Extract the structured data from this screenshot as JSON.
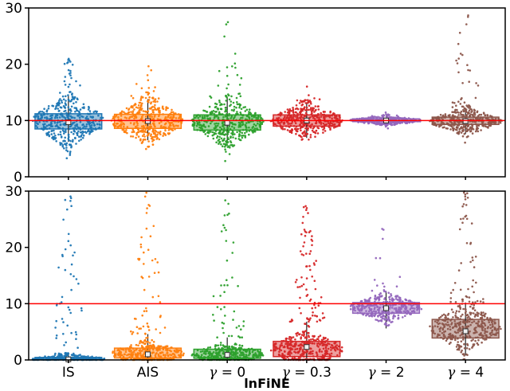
{
  "figure": {
    "xlabel": "lnFiNE",
    "background": "#ffffff",
    "axis_color": "#000000",
    "reference_color": "#ff0000"
  },
  "chart_data": [
    {
      "type": "scatter",
      "position": "top",
      "title": "",
      "xlabel": "",
      "ylabel": "",
      "ylim": [
        0,
        30
      ],
      "yticks": [
        0,
        10,
        20,
        30
      ],
      "grid": false,
      "legend": "none",
      "reference_line_y": 10,
      "show_x_tick_labels": false,
      "categories": [
        "IS",
        "AIS",
        "γ = 0",
        "γ = 0.3",
        "γ = 2",
        "γ = 4"
      ],
      "series": [
        {
          "name": "IS",
          "color": "#1f77b4",
          "median": 9.7,
          "q1": 8.5,
          "q3": 11.2,
          "whisker_low": 6.2,
          "whisker_high": 14.4,
          "cluster_center": 9.9,
          "cluster_sigma": 2.1,
          "cluster_n": 420,
          "tail_min": 14.4,
          "tail_max": 21.0,
          "tail_n": 22
        },
        {
          "name": "AIS",
          "color": "#ff7f0e",
          "median": 9.9,
          "q1": 8.6,
          "q3": 11.1,
          "whisker_low": 6.5,
          "whisker_high": 13.8,
          "cluster_center": 9.9,
          "cluster_sigma": 1.9,
          "cluster_n": 400,
          "tail_min": 13.8,
          "tail_max": 20.0,
          "tail_n": 14
        },
        {
          "name": "γ = 0",
          "color": "#2ca02c",
          "median": 9.6,
          "q1": 8.3,
          "q3": 11.0,
          "whisker_low": 6.0,
          "whisker_high": 14.0,
          "cluster_center": 9.7,
          "cluster_sigma": 2.0,
          "cluster_n": 410,
          "tail_min": 14.0,
          "tail_max": 28.0,
          "tail_n": 22
        },
        {
          "name": "γ = 0.3",
          "color": "#d62728",
          "median": 10.0,
          "q1": 9.0,
          "q3": 11.0,
          "whisker_low": 6.9,
          "whisker_high": 13.2,
          "cluster_center": 10.0,
          "cluster_sigma": 1.5,
          "cluster_n": 380,
          "tail_min": 13.2,
          "tail_max": 16.5,
          "tail_n": 10
        },
        {
          "name": "γ = 2",
          "color": "#9467bd",
          "median": 10.0,
          "q1": 9.8,
          "q3": 10.3,
          "whisker_low": 9.2,
          "whisker_high": 10.8,
          "cluster_center": 10.0,
          "cluster_sigma": 0.4,
          "cluster_n": 340,
          "tail_min": 10.8,
          "tail_max": 11.5,
          "tail_n": 3
        },
        {
          "name": "γ = 4",
          "color": "#8c564b",
          "median": 9.9,
          "q1": 9.3,
          "q3": 10.6,
          "whisker_low": 7.6,
          "whisker_high": 12.2,
          "cluster_center": 9.9,
          "cluster_sigma": 1.1,
          "cluster_n": 360,
          "tail_min": 12.2,
          "tail_max": 29.0,
          "tail_n": 30
        }
      ]
    },
    {
      "type": "scatter",
      "position": "bottom",
      "title": "",
      "xlabel": "lnFiNE",
      "ylabel": "",
      "ylim": [
        0,
        30
      ],
      "yticks": [
        0,
        10,
        20,
        30
      ],
      "grid": false,
      "legend": "none",
      "reference_line_y": 10,
      "show_x_tick_labels": true,
      "categories": [
        "IS",
        "AIS",
        "γ = 0",
        "γ = 0.3",
        "γ = 2",
        "γ = 4"
      ],
      "series": [
        {
          "name": "IS",
          "color": "#1f77b4",
          "median": 0.1,
          "q1": 0.02,
          "q3": 0.45,
          "whisker_low": 0.0,
          "whisker_high": 1.1,
          "cluster_center": 0.15,
          "cluster_sigma": 0.45,
          "cluster_n": 280,
          "tail_min": 1.1,
          "tail_max": 30.0,
          "tail_n": 50
        },
        {
          "name": "AIS",
          "color": "#ff7f0e",
          "median": 1.0,
          "q1": 0.35,
          "q3": 2.1,
          "whisker_low": 0.0,
          "whisker_high": 4.6,
          "cluster_center": 1.1,
          "cluster_sigma": 1.1,
          "cluster_n": 330,
          "tail_min": 4.6,
          "tail_max": 30.0,
          "tail_n": 55
        },
        {
          "name": "γ = 0",
          "color": "#2ca02c",
          "median": 0.9,
          "q1": 0.3,
          "q3": 1.9,
          "whisker_low": 0.0,
          "whisker_high": 4.0,
          "cluster_center": 1.0,
          "cluster_sigma": 1.0,
          "cluster_n": 330,
          "tail_min": 4.0,
          "tail_max": 30.0,
          "tail_n": 45
        },
        {
          "name": "γ = 0.3",
          "color": "#d62728",
          "median": 2.3,
          "q1": 0.6,
          "q3": 3.3,
          "whisker_low": 0.0,
          "whisker_high": 6.8,
          "cluster_center": 1.9,
          "cluster_sigma": 1.6,
          "cluster_n": 380,
          "tail_min": 6.8,
          "tail_max": 28.0,
          "tail_n": 80
        },
        {
          "name": "γ = 2",
          "color": "#9467bd",
          "median": 9.2,
          "q1": 8.3,
          "q3": 10.2,
          "whisker_low": 5.6,
          "whisker_high": 12.2,
          "cluster_center": 9.3,
          "cluster_sigma": 1.2,
          "cluster_n": 350,
          "tail_min": 12.2,
          "tail_max": 25.0,
          "tail_n": 12
        },
        {
          "name": "γ = 4",
          "color": "#8c564b",
          "median": 5.1,
          "q1": 3.9,
          "q3": 7.2,
          "whisker_low": 0.8,
          "whisker_high": 10.2,
          "cluster_center": 5.8,
          "cluster_sigma": 2.0,
          "cluster_n": 370,
          "tail_min": 10.2,
          "tail_max": 30.0,
          "tail_n": 48
        }
      ]
    }
  ]
}
